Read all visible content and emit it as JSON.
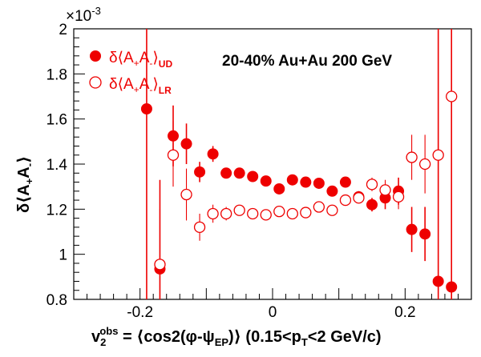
{
  "chart_data": {
    "type": "scatter",
    "title": "",
    "annotation": "20-40% Au+Au 200 GeV",
    "exponent_label": "×10",
    "exponent_power": "-3",
    "xlabel": {
      "v": "v",
      "v_sub": "2",
      "v_sup": "obs",
      "main": " = ⟨cos2(φ-ψ",
      "main_sub": "EP",
      "tail": ")⟩ (0.15<p",
      "tail_sub": "T",
      "end": "<2 GeV/c)"
    },
    "ylabel": {
      "pre": "δ⟨A",
      "sub1": "+",
      "mid": "A",
      "sub2": "-",
      "post": "⟩"
    },
    "xlim": [
      -0.3,
      0.3
    ],
    "ylim": [
      0.8,
      2.0
    ],
    "x_ticks": [
      -0.2,
      0,
      0.2
    ],
    "x_tick_labels": [
      "-0.2",
      "0",
      "0.2"
    ],
    "y_ticks": [
      0.8,
      1.0,
      1.2,
      1.4,
      1.6,
      1.8,
      2.0
    ],
    "y_tick_labels": [
      "0.8",
      "1",
      "1.2",
      "1.4",
      "1.6",
      "1.8",
      "2"
    ],
    "legend_position": "top-left",
    "color": "#ee0000",
    "series": [
      {
        "name_pre": "δ⟨A",
        "name_sub1": "+",
        "name_mid": "A",
        "name_sub2": "-",
        "name_post": "⟩",
        "name_tag": "UD",
        "marker": "filled-circle",
        "points": [
          {
            "x": -0.19,
            "y": 1.645,
            "lo": 0.8,
            "hi": 2.0
          },
          {
            "x": -0.17,
            "y": 0.935,
            "lo": 0.8,
            "hi": 1.33
          },
          {
            "x": -0.15,
            "y": 1.525,
            "lo": 1.39,
            "hi": 1.66
          },
          {
            "x": -0.13,
            "y": 1.49,
            "lo": 1.4,
            "hi": 1.58
          },
          {
            "x": -0.11,
            "y": 1.365,
            "lo": 1.32,
            "hi": 1.41
          },
          {
            "x": -0.09,
            "y": 1.445,
            "lo": 1.41,
            "hi": 1.48
          },
          {
            "x": -0.07,
            "y": 1.36,
            "lo": 1.34,
            "hi": 1.38
          },
          {
            "x": -0.05,
            "y": 1.36,
            "lo": 1.34,
            "hi": 1.38
          },
          {
            "x": -0.03,
            "y": 1.345,
            "lo": 1.33,
            "hi": 1.36
          },
          {
            "x": -0.01,
            "y": 1.325,
            "lo": 1.31,
            "hi": 1.34
          },
          {
            "x": 0.01,
            "y": 1.29,
            "lo": 1.28,
            "hi": 1.3
          },
          {
            "x": 0.03,
            "y": 1.33,
            "lo": 1.32,
            "hi": 1.34
          },
          {
            "x": 0.05,
            "y": 1.32,
            "lo": 1.31,
            "hi": 1.33
          },
          {
            "x": 0.07,
            "y": 1.315,
            "lo": 1.3,
            "hi": 1.33
          },
          {
            "x": 0.09,
            "y": 1.28,
            "lo": 1.26,
            "hi": 1.3
          },
          {
            "x": 0.11,
            "y": 1.32,
            "lo": 1.3,
            "hi": 1.34
          },
          {
            "x": 0.13,
            "y": 1.255,
            "lo": 1.23,
            "hi": 1.28
          },
          {
            "x": 0.15,
            "y": 1.22,
            "lo": 1.19,
            "hi": 1.25
          },
          {
            "x": 0.17,
            "y": 1.25,
            "lo": 1.2,
            "hi": 1.3
          },
          {
            "x": 0.19,
            "y": 1.28,
            "lo": 1.22,
            "hi": 1.34
          },
          {
            "x": 0.21,
            "y": 1.11,
            "lo": 1.01,
            "hi": 1.21
          },
          {
            "x": 0.23,
            "y": 1.09,
            "lo": 0.97,
            "hi": 1.21
          },
          {
            "x": 0.25,
            "y": 0.88,
            "lo": 0.8,
            "hi": 2.0
          },
          {
            "x": 0.27,
            "y": 0.855,
            "lo": 0.8,
            "hi": 2.0
          }
        ]
      },
      {
        "name_pre": "δ⟨A",
        "name_sub1": "+",
        "name_mid": "A",
        "name_sub2": "-",
        "name_post": "⟩",
        "name_tag": "LR",
        "marker": "open-circle",
        "points": [
          {
            "x": -0.17,
            "y": 0.955,
            "lo": 0.8,
            "hi": 1.2
          },
          {
            "x": -0.15,
            "y": 1.44,
            "lo": 1.3,
            "hi": 1.59
          },
          {
            "x": -0.13,
            "y": 1.265,
            "lo": 1.15,
            "hi": 1.38
          },
          {
            "x": -0.11,
            "y": 1.12,
            "lo": 1.06,
            "hi": 1.18
          },
          {
            "x": -0.09,
            "y": 1.18,
            "lo": 1.14,
            "hi": 1.22
          },
          {
            "x": -0.07,
            "y": 1.18,
            "lo": 1.15,
            "hi": 1.21
          },
          {
            "x": -0.05,
            "y": 1.195,
            "lo": 1.18,
            "hi": 1.21
          },
          {
            "x": -0.03,
            "y": 1.18,
            "lo": 1.17,
            "hi": 1.19
          },
          {
            "x": -0.01,
            "y": 1.175,
            "lo": 1.165,
            "hi": 1.185
          },
          {
            "x": 0.01,
            "y": 1.19,
            "lo": 1.18,
            "hi": 1.2
          },
          {
            "x": 0.03,
            "y": 1.18,
            "lo": 1.17,
            "hi": 1.19
          },
          {
            "x": 0.05,
            "y": 1.185,
            "lo": 1.175,
            "hi": 1.195
          },
          {
            "x": 0.07,
            "y": 1.21,
            "lo": 1.2,
            "hi": 1.22
          },
          {
            "x": 0.09,
            "y": 1.195,
            "lo": 1.18,
            "hi": 1.21
          },
          {
            "x": 0.11,
            "y": 1.24,
            "lo": 1.22,
            "hi": 1.26
          },
          {
            "x": 0.13,
            "y": 1.25,
            "lo": 1.23,
            "hi": 1.27
          },
          {
            "x": 0.15,
            "y": 1.31,
            "lo": 1.28,
            "hi": 1.34
          },
          {
            "x": 0.17,
            "y": 1.285,
            "lo": 1.24,
            "hi": 1.33
          },
          {
            "x": 0.19,
            "y": 1.255,
            "lo": 1.2,
            "hi": 1.31
          },
          {
            "x": 0.21,
            "y": 1.43,
            "lo": 1.33,
            "hi": 1.53
          },
          {
            "x": 0.23,
            "y": 1.4,
            "lo": 1.27,
            "hi": 1.53
          },
          {
            "x": 0.25,
            "y": 1.44,
            "lo": 0.8,
            "hi": 2.0
          },
          {
            "x": 0.27,
            "y": 1.7,
            "lo": 0.8,
            "hi": 2.0
          }
        ]
      }
    ]
  }
}
